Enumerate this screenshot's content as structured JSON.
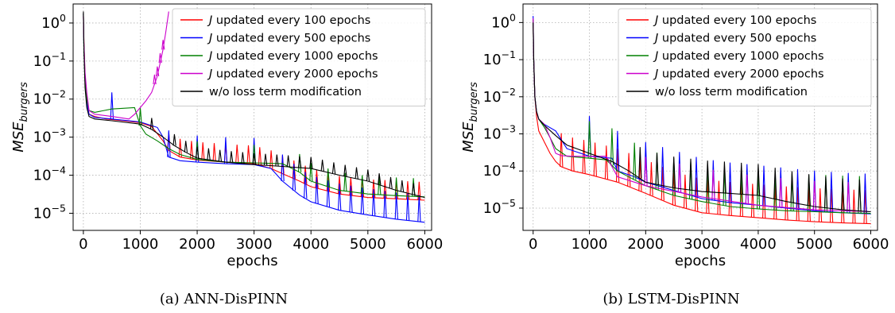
{
  "chart_data": [
    {
      "type": "line",
      "caption": "(a) ANN-DisPINN",
      "xlabel": "epochs",
      "ylabel": "MSE",
      "ylabel_sub": "burgers",
      "xlim": [
        -180,
        6120
      ],
      "ylim_log10": [
        -5.45,
        0.5
      ],
      "yscale": "log",
      "grid": true,
      "legend_position": "upper-right",
      "x_ticks": [
        0,
        1000,
        2000,
        3000,
        4000,
        5000,
        6000
      ],
      "y_ticks": [
        {
          "value": 1,
          "label_base": "10",
          "label_exp": "0"
        },
        {
          "value": 0.1,
          "label_base": "10",
          "label_exp": "−1"
        },
        {
          "value": 0.01,
          "label_base": "10",
          "label_exp": "−2"
        },
        {
          "value": 0.001,
          "label_base": "10",
          "label_exp": "−3"
        },
        {
          "value": 0.0001,
          "label_base": "10",
          "label_exp": "−4"
        },
        {
          "value": 1e-05,
          "label_base": "10",
          "label_exp": "−5"
        }
      ],
      "series": [
        {
          "name": "updated every 100 epochs",
          "name_prefix": "J",
          "color": "#ff0000",
          "x": [
            0,
            10,
            30,
            60,
            100,
            200,
            400,
            700,
            1000,
            1200,
            1400,
            1500,
            1700,
            2000,
            2500,
            3000,
            3300,
            3500,
            3800,
            4000,
            4500,
            5000,
            5500,
            6000
          ],
          "y": [
            1.8,
            0.3,
            0.04,
            0.012,
            0.004,
            0.0035,
            0.003,
            0.0027,
            0.0024,
            0.0019,
            0.0008,
            0.00045,
            0.0003,
            0.00025,
            0.00022,
            0.0002,
            0.00015,
            0.00011,
            7e-05,
            5e-05,
            3.2e-05,
            2.6e-05,
            2.4e-05,
            2.2e-05
          ],
          "spikes": [
            1500,
            1700,
            1900,
            2100,
            2300,
            2500,
            2700,
            2900,
            3100,
            3300,
            3500,
            3700,
            3900,
            4100,
            4300,
            4500,
            4700,
            4900,
            5100,
            5300,
            5500,
            5700,
            5900
          ],
          "spike_factor": 3
        },
        {
          "name": "updated every 500 epochs",
          "name_prefix": "J",
          "color": "#0000ff",
          "x": [
            0,
            10,
            30,
            60,
            100,
            200,
            500,
            1000,
            1300,
            1400,
            1500,
            1700,
            2000,
            2500,
            3000,
            3300,
            3500,
            3800,
            4000,
            4500,
            5000,
            5500,
            6000
          ],
          "y": [
            1.8,
            0.2,
            0.03,
            0.008,
            0.004,
            0.0033,
            0.003,
            0.0025,
            0.0018,
            0.001,
            0.0003,
            0.00024,
            0.00022,
            0.0002,
            0.00019,
            0.00015,
            7e-05,
            3e-05,
            2e-05,
            1.2e-05,
            9e-06,
            7e-06,
            5.8e-06
          ],
          "spikes": [
            500,
            1500,
            2000,
            2500,
            3000,
            3500,
            3700,
            3900,
            4100,
            4300,
            4500,
            4700,
            4900,
            5100,
            5300,
            5500,
            5700,
            5900
          ],
          "spike_factor": 5
        },
        {
          "name": "updated every 1000 epochs",
          "name_prefix": "J",
          "color": "#008000",
          "x": [
            0,
            10,
            30,
            60,
            100,
            200,
            500,
            900,
            1000,
            1100,
            1300,
            1500,
            1700,
            2000,
            2500,
            3000,
            3500,
            3800,
            4000,
            4500,
            5000,
            5500,
            6000
          ],
          "y": [
            1.8,
            0.2,
            0.03,
            0.01,
            0.005,
            0.0045,
            0.0055,
            0.006,
            0.002,
            0.0012,
            0.0008,
            0.0005,
            0.00035,
            0.00026,
            0.00022,
            0.00021,
            0.0002,
            0.00012,
            7e-05,
            4e-05,
            3.2e-05,
            2.9e-05,
            2.7e-05
          ],
          "spikes": [
            1000,
            2000,
            3000,
            3800,
            4000,
            4300,
            4600,
            4900,
            5200,
            5500,
            5800
          ],
          "spike_factor": 3
        },
        {
          "name": "updated every 2000 epochs",
          "name_prefix": "J",
          "color": "#cc00cc",
          "x": [
            0,
            10,
            30,
            60,
            100,
            200,
            500,
            800,
            900,
            1000,
            1100,
            1200,
            1300,
            1400,
            1450,
            1500
          ],
          "y": [
            1.5,
            0.3,
            0.05,
            0.015,
            0.005,
            0.004,
            0.0035,
            0.003,
            0.004,
            0.006,
            0.009,
            0.015,
            0.04,
            0.2,
            0.6,
            2.0
          ],
          "spikes": [
            1250,
            1300,
            1350,
            1400
          ],
          "spike_factor": 1.8
        },
        {
          "name": "w/o loss term modification",
          "name_prefix": "",
          "color": "#000000",
          "x": [
            0,
            10,
            30,
            60,
            100,
            200,
            500,
            1000,
            1200,
            1400,
            1600,
            1800,
            2000,
            2500,
            3000,
            3500,
            4000,
            4500,
            5000,
            5500,
            6000
          ],
          "y": [
            2.0,
            0.2,
            0.02,
            0.006,
            0.0035,
            0.003,
            0.0027,
            0.0022,
            0.0016,
            0.001,
            0.0006,
            0.0004,
            0.00028,
            0.00022,
            0.00019,
            0.00017,
            0.00015,
            0.0001,
            7e-05,
            4e-05,
            2.6e-05
          ],
          "spikes": [
            1200,
            1600,
            1800,
            2000,
            2200,
            2400,
            2600,
            2800,
            3000,
            3200,
            3400,
            3600,
            3800,
            4000,
            4200,
            4400,
            4600,
            4800,
            5000,
            5200,
            5400,
            5600,
            5800
          ],
          "spike_factor": 2
        }
      ]
    },
    {
      "type": "line",
      "caption": "(b) LSTM-DisPINN",
      "xlabel": "epochs",
      "ylabel": "MSE",
      "ylabel_sub": "burgers",
      "xlim": [
        -180,
        6120
      ],
      "ylim_log10": [
        -5.6,
        0.5
      ],
      "yscale": "log",
      "grid": true,
      "legend_position": "upper-right",
      "x_ticks": [
        0,
        1000,
        2000,
        3000,
        4000,
        5000,
        6000
      ],
      "y_ticks": [
        {
          "value": 1,
          "label_base": "10",
          "label_exp": "0"
        },
        {
          "value": 0.1,
          "label_base": "10",
          "label_exp": "−1"
        },
        {
          "value": 0.01,
          "label_base": "10",
          "label_exp": "−2"
        },
        {
          "value": 0.001,
          "label_base": "10",
          "label_exp": "−3"
        },
        {
          "value": 0.0001,
          "label_base": "10",
          "label_exp": "−4"
        },
        {
          "value": 1e-05,
          "label_base": "10",
          "label_exp": "−5"
        }
      ],
      "series": [
        {
          "name": "updated every 100 epochs",
          "name_prefix": "J",
          "color": "#ff0000",
          "x": [
            0,
            10,
            30,
            60,
            100,
            200,
            300,
            400,
            500,
            700,
            1000,
            1500,
            2000,
            2500,
            3000,
            3500,
            4000,
            4500,
            5000,
            5500,
            6000
          ],
          "y": [
            1.2,
            0.1,
            0.01,
            0.003,
            0.0012,
            0.0006,
            0.0003,
            0.00018,
            0.00013,
            0.0001,
            8e-05,
            5e-05,
            2.5e-05,
            1.2e-05,
            7.5e-06,
            6.3e-06,
            5.5e-06,
            4.8e-06,
            4.3e-06,
            4e-06,
            3.8e-06
          ],
          "spikes": [
            500,
            700,
            900,
            1100,
            1300,
            1500,
            1700,
            1900,
            2100,
            2300,
            2500,
            2700,
            2900,
            3100,
            3300,
            3500,
            3700,
            3900,
            4100,
            4300,
            4500,
            4700,
            4900,
            5100,
            5300,
            5500,
            5700,
            5900
          ],
          "spike_factor": 8
        },
        {
          "name": "updated every 500 epochs",
          "name_prefix": "J",
          "color": "#0000ff",
          "x": [
            0,
            10,
            30,
            60,
            100,
            200,
            400,
            600,
            1000,
            1400,
            1500,
            1800,
            2000,
            2500,
            3000,
            3500,
            4000,
            4500,
            5000,
            5500,
            6000
          ],
          "y": [
            1.5,
            0.1,
            0.01,
            0.004,
            0.0025,
            0.0018,
            0.0012,
            0.0004,
            0.00025,
            0.00022,
            0.0001,
            7e-05,
            5e-05,
            3e-05,
            1.8e-05,
            1.4e-05,
            1.2e-05,
            1e-05,
            8.5e-06,
            7.5e-06,
            7e-06
          ],
          "spikes": [
            1000,
            1500,
            2000,
            2300,
            2600,
            2900,
            3200,
            3500,
            3800,
            4100,
            4400,
            4700,
            5000,
            5300,
            5600,
            5900
          ],
          "spike_factor": 12
        },
        {
          "name": "updated every 1000 epochs",
          "name_prefix": "J",
          "color": "#008000",
          "x": [
            0,
            10,
            30,
            60,
            100,
            200,
            300,
            400,
            600,
            1000,
            1300,
            1500,
            2000,
            2500,
            3000,
            3500,
            4000,
            4500,
            5000,
            5500,
            6000
          ],
          "y": [
            1.2,
            0.1,
            0.01,
            0.004,
            0.0025,
            0.0015,
            0.0008,
            0.0004,
            0.00025,
            0.00022,
            0.0002,
            0.0001,
            4e-05,
            2.2e-05,
            1.5e-05,
            1.1e-05,
            9.5e-06,
            8.5e-06,
            8e-06,
            7.5e-06,
            7.2e-06
          ],
          "spikes": [
            1000,
            1400,
            1800,
            2200,
            2500,
            2800,
            3100,
            3400,
            3700,
            4000,
            4300,
            4600,
            4900,
            5200,
            5500,
            5800
          ],
          "spike_factor": 10
        },
        {
          "name": "updated every 2000 epochs",
          "name_prefix": "J",
          "color": "#cc00cc",
          "x": [
            0,
            10,
            30,
            60,
            100,
            200,
            300,
            400,
            500,
            700,
            1000,
            1300,
            1500,
            2000,
            3000,
            4000,
            5000,
            6000
          ],
          "y": [
            1.3,
            0.1,
            0.01,
            0.004,
            0.0025,
            0.0018,
            0.0008,
            0.0003,
            0.00026,
            0.00025,
            0.00025,
            0.00025,
            7e-05,
            4e-05,
            2e-05,
            1.2e-05,
            9e-06,
            8e-06
          ],
          "spikes": [
            2000,
            2600,
            3200,
            3800,
            4400,
            5000,
            5600
          ],
          "spike_factor": 6
        },
        {
          "name": "w/o loss term modification",
          "name_prefix": "",
          "color": "#000000",
          "x": [
            0,
            10,
            30,
            60,
            100,
            200,
            400,
            600,
            1000,
            1400,
            1700,
            2000,
            2500,
            3000,
            3500,
            4000,
            4500,
            5000,
            5500,
            6000
          ],
          "y": [
            1.0,
            0.1,
            0.01,
            0.004,
            0.0025,
            0.0017,
            0.0009,
            0.0005,
            0.0003,
            0.00018,
            0.0001,
            5e-05,
            3.5e-05,
            2.8e-05,
            2.5e-05,
            2.2e-05,
            1.5e-05,
            1.1e-05,
            9e-06,
            8e-06
          ],
          "spikes": [
            1900,
            2200,
            2500,
            2800,
            3100,
            3400,
            3700,
            4000,
            4300,
            4600,
            4900,
            5200,
            5500,
            5800
          ],
          "spike_factor": 7
        }
      ]
    }
  ]
}
